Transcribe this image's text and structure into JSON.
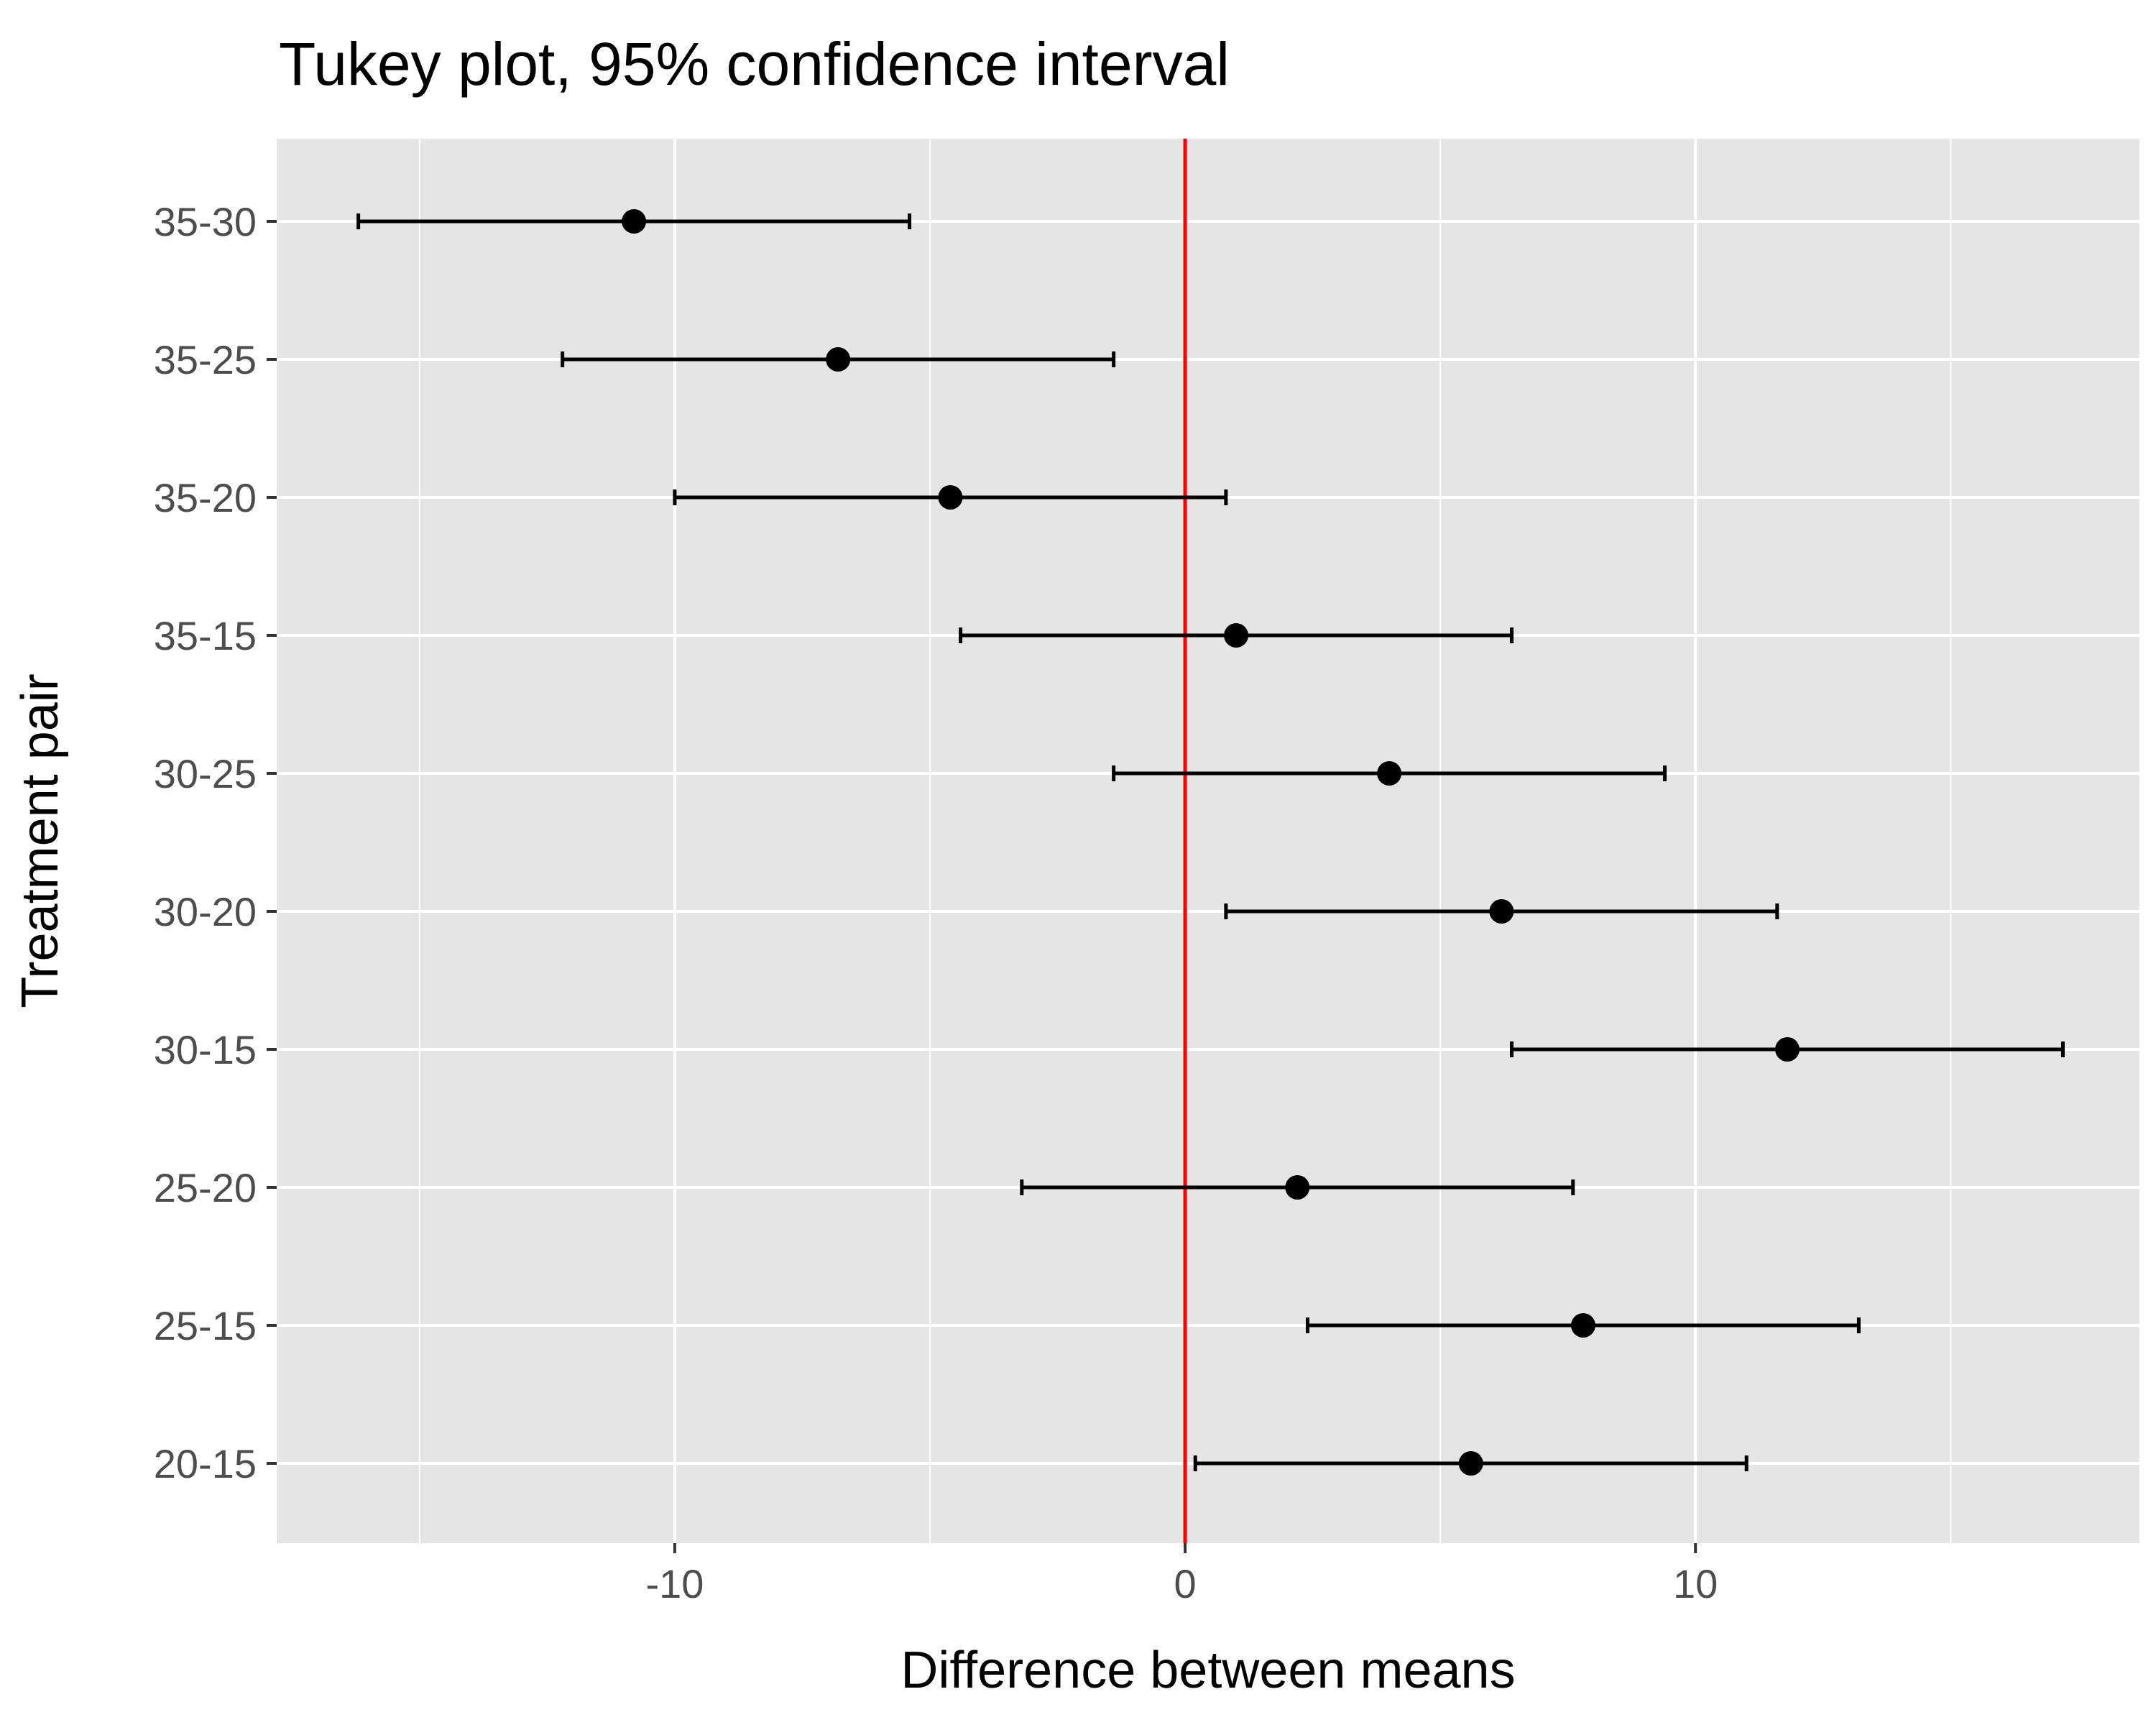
{
  "chart_data": {
    "type": "errorbar",
    "title": "Tukey plot, 95% confidence interval",
    "xlabel": "Difference between means",
    "ylabel": "Treatment pair",
    "xlim": [
      -17.8,
      18.7
    ],
    "x_ticks": [
      -10,
      0,
      10
    ],
    "x_tick_labels": [
      "-10",
      "0",
      "10"
    ],
    "reference_line": {
      "x": 0,
      "color": "#ff0000"
    },
    "grid": true,
    "panel_background": "#e5e5e5",
    "point_color": "#000000",
    "categories": [
      "35-30",
      "35-25",
      "35-20",
      "35-15",
      "30-25",
      "30-20",
      "30-15",
      "25-20",
      "25-15",
      "20-15"
    ],
    "estimates": [
      -10.8,
      -6.8,
      -4.6,
      1.0,
      4.0,
      6.2,
      11.8,
      2.2,
      7.8,
      5.6
    ],
    "lower": [
      -16.2,
      -12.2,
      -10.0,
      -4.4,
      -1.4,
      0.8,
      6.4,
      -3.2,
      2.4,
      0.2
    ],
    "upper": [
      -5.4,
      -1.4,
      0.8,
      6.4,
      9.4,
      11.6,
      17.2,
      7.6,
      13.2,
      11.0
    ]
  }
}
